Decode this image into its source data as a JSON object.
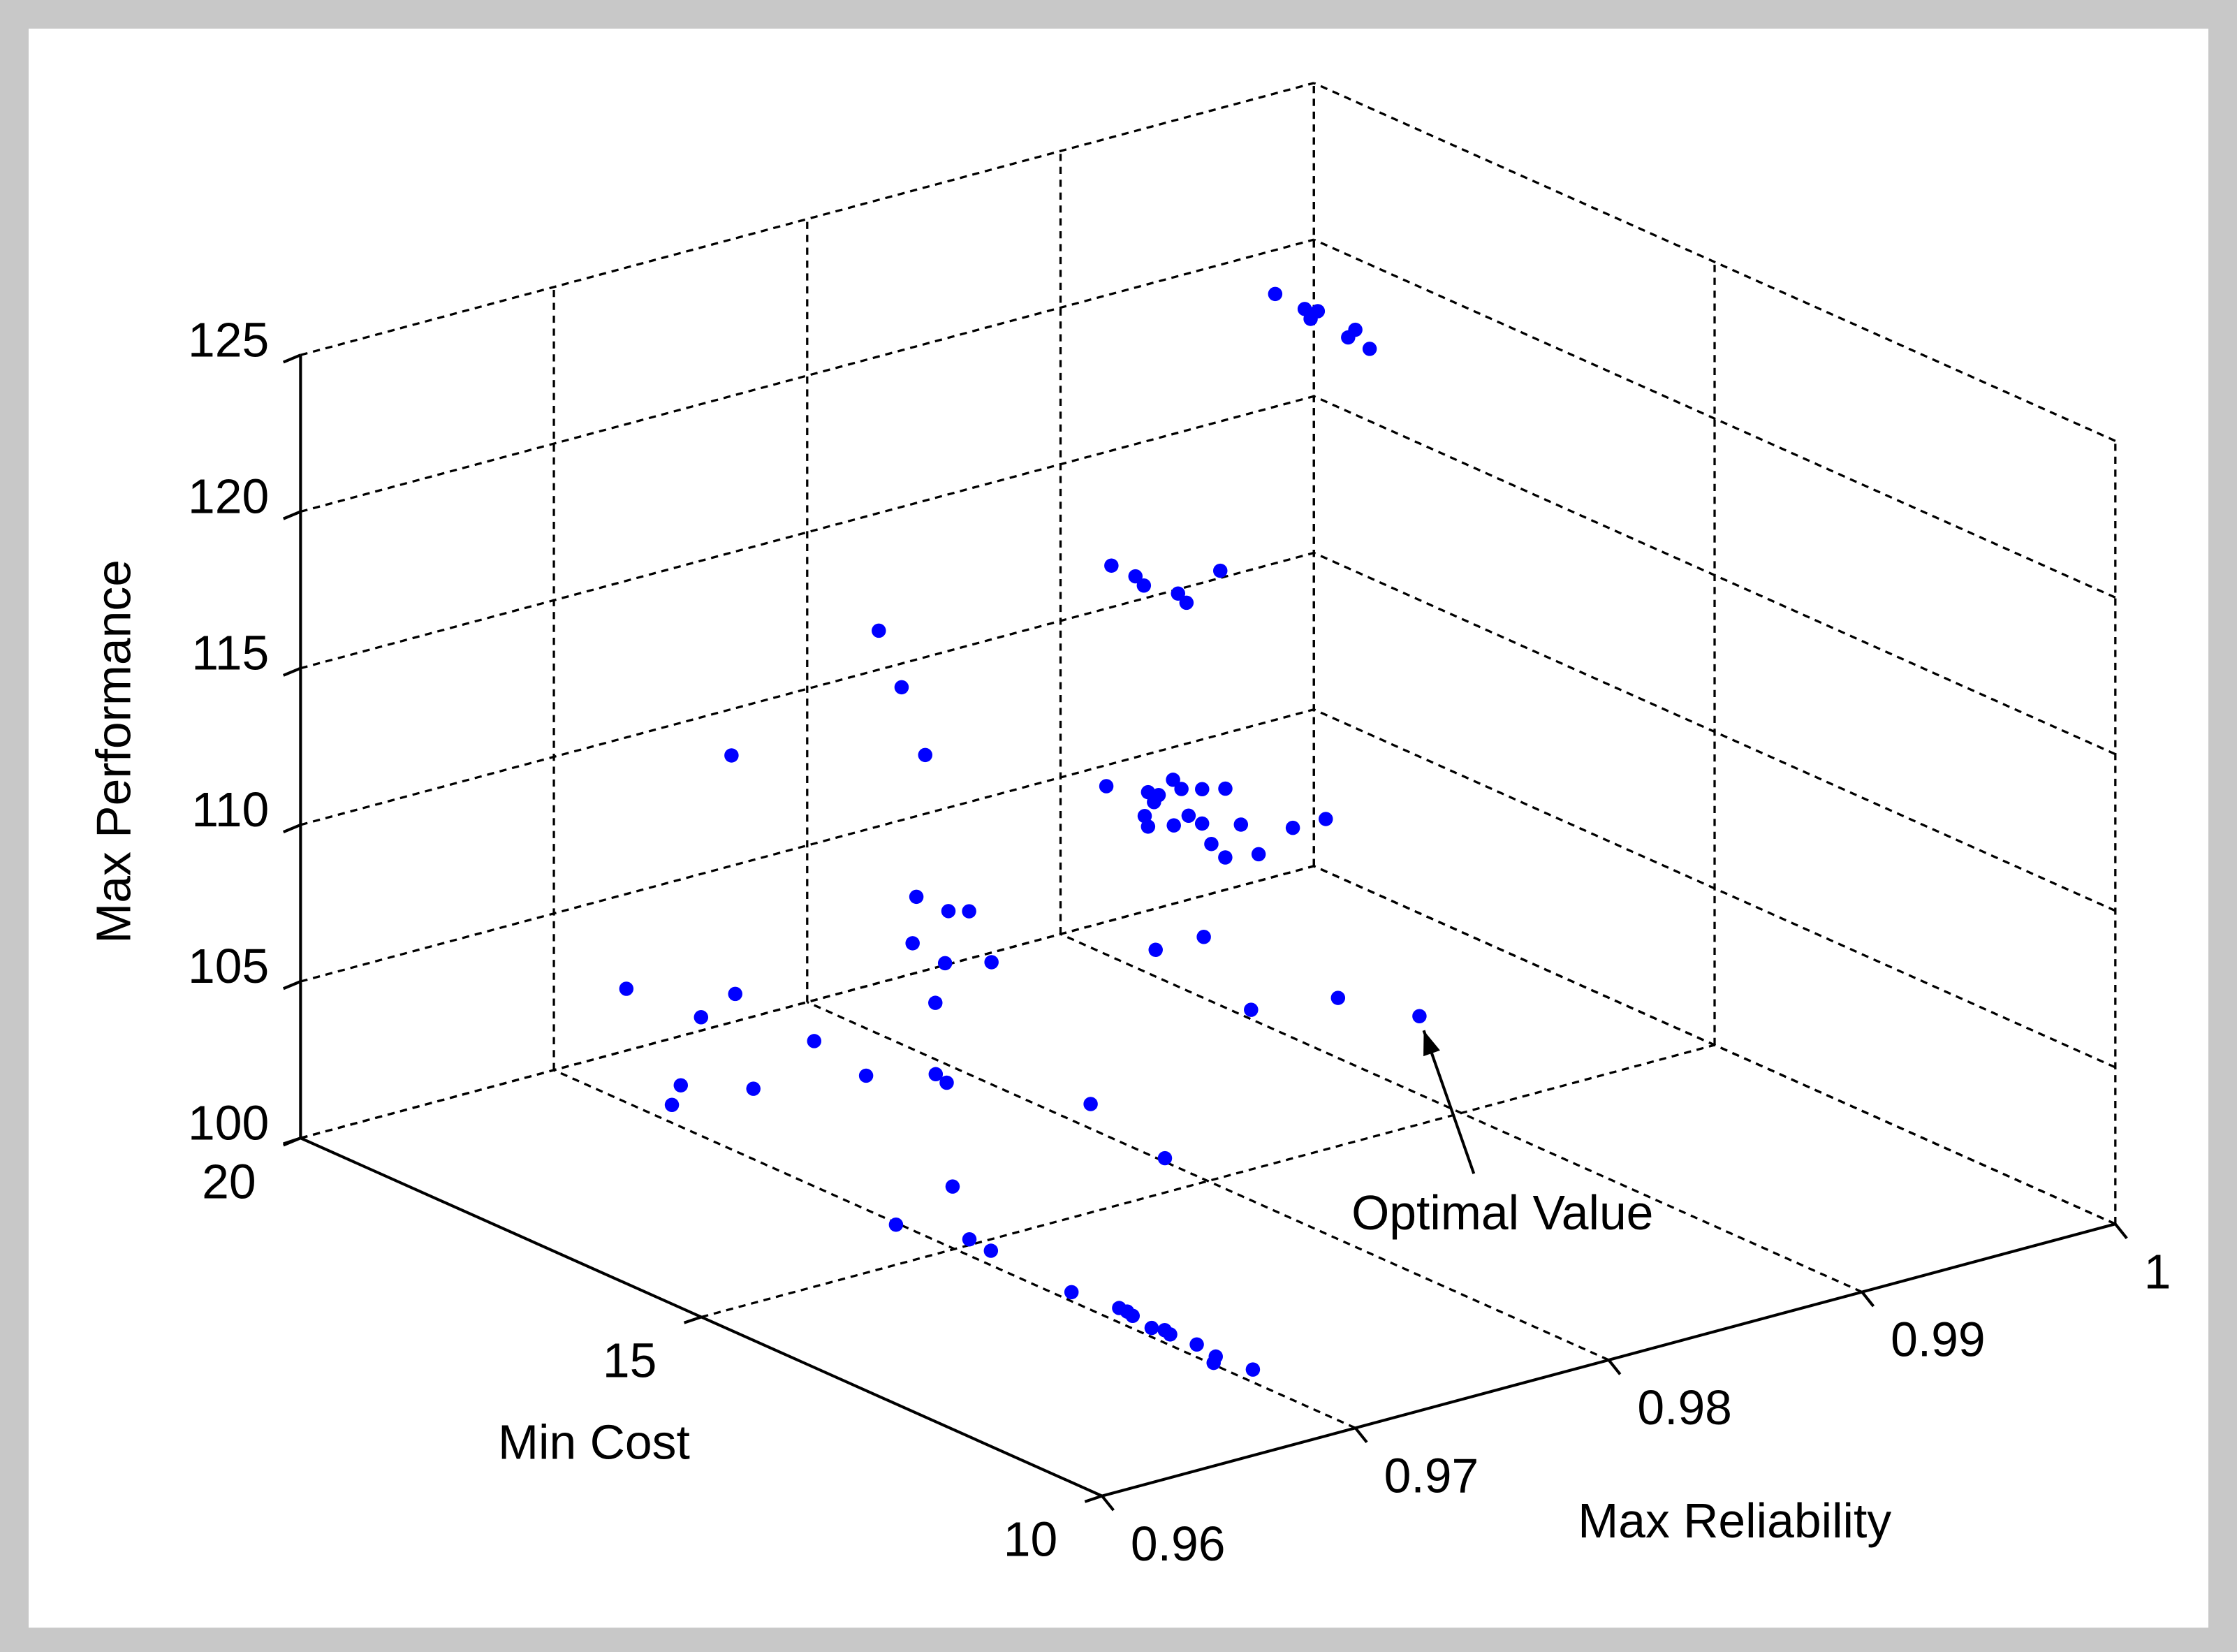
{
  "chart_data": {
    "type": "scatter3d",
    "xlabel": "Max Reliability",
    "ylabel": "Min Cost",
    "zlabel": "Max Performance",
    "xlim": [
      0.96,
      1
    ],
    "xticks": [
      0.96,
      0.97,
      0.98,
      0.99,
      1
    ],
    "ylim": [
      10,
      20
    ],
    "yticks": [
      10,
      15,
      20
    ],
    "zlim": [
      100,
      125
    ],
    "zticks": [
      100,
      105,
      110,
      115,
      120,
      125
    ],
    "grid": true,
    "color": "#0000ff",
    "annotation": "Optimal Value",
    "x": [
      0.9874,
      0.9873,
      0.9869,
      0.9875,
      0.9868,
      0.9874,
      0.9867,
      0.9822,
      0.9822,
      0.9819,
      0.9823,
      0.982,
      0.9846,
      0.982,
      0.9827,
      0.9823,
      0.9828,
      0.984,
      0.9837,
      0.9842,
      0.9848,
      0.9813,
      0.9808,
      0.9815,
      0.9824,
      0.9823,
      0.9814,
      0.981,
      0.9832,
      0.982,
      0.9843,
      0.9856,
      0.9746,
      0.9755,
      0.9758,
      0.971,
      0.9764,
      0.9764,
      0.9769,
      0.9772,
      0.9769,
      0.9781,
      0.9762,
      0.9659,
      0.9683,
      0.9679,
      0.9711,
      0.9671,
      0.9658,
      0.9687,
      0.9722,
      0.974,
      0.9738,
      0.9779,
      0.9802,
      0.9734,
      0.9699,
      0.9709,
      0.9708,
      0.9705,
      0.9708,
      0.9708,
      0.9707,
      0.9705,
      0.9707,
      0.9706,
      0.9707,
      0.9705,
      0.9701,
      0.9707,
      0.9811,
      0.983,
      0.9836,
      0.9864,
      0.9874
    ],
    "y": [
      16.5,
      16.1,
      15.9,
      16.0,
      15.4,
      15.5,
      15.1,
      16.9,
      16.6,
      16.4,
      16.1,
      15.9,
      16.3,
      16.9,
      16.6,
      16.4,
      16.5,
      16.7,
      16.5,
      16.4,
      16.3,
      16.2,
      16.0,
      15.9,
      16.0,
      15.8,
      15.4,
      15.1,
      15.6,
      15.0,
      15.3,
      15.3,
      17.4,
      17.4,
      17.2,
      18.1,
      17.5,
      17.1,
      17.0,
      17.8,
      17.3,
      17.1,
      17.2,
      17.8,
      17.2,
      17.5,
      17.1,
      17.5,
      17.2,
      17.1,
      16.8,
      16.5,
      16.3,
      15.8,
      15.6,
      16.1,
      15.7,
      15.1,
      14.8,
      13.7,
      13.2,
      13.1,
      13.0,
      12.7,
      12.6,
      12.5,
      12.2,
      11.9,
      11.8,
      11.5,
      16.0,
      16.0,
      15.6,
      15.4,
      14.7
    ],
    "z": [
      125,
      125,
      125,
      125,
      125,
      125,
      125,
      117,
      117,
      117,
      117,
      117,
      117,
      110,
      110,
      110,
      110,
      110,
      110,
      110,
      110,
      110,
      110,
      110,
      110,
      110,
      110,
      110,
      110,
      110,
      110,
      110,
      116,
      114,
      112,
      112,
      107,
      107,
      107,
      105,
      105,
      105,
      104,
      106,
      106,
      105,
      104,
      103,
      103,
      103,
      103,
      103,
      103,
      102,
      100,
      100,
      100,
      100,
      100,
      100,
      100,
      100,
      100,
      100,
      100,
      100,
      100,
      100,
      100,
      100,
      106,
      106,
      104,
      104,
      104
    ]
  }
}
